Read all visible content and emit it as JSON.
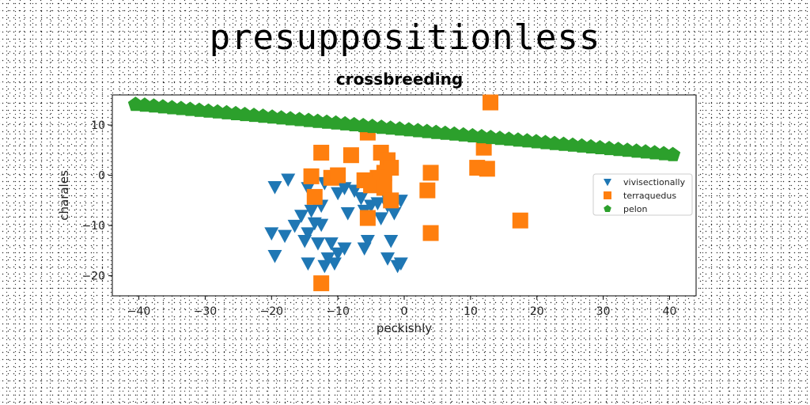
{
  "page_title": "presuppositionless",
  "chart_data": {
    "type": "scatter",
    "title": "crossbreeding",
    "xlabel": "peckishly",
    "ylabel": "charales",
    "xlim": [
      -44,
      44
    ],
    "ylim": [
      -24,
      16
    ],
    "xticks": [
      -40,
      -30,
      -20,
      -10,
      0,
      10,
      20,
      30,
      40
    ],
    "yticks": [
      10,
      0,
      -10,
      -20
    ],
    "xtick_labels": [
      "−40",
      "−30",
      "−20",
      "−10",
      "0",
      "10",
      "20",
      "30",
      "40"
    ],
    "ytick_labels": [
      "10",
      "0",
      "−10",
      "−20"
    ],
    "grid": false,
    "legend_position": "right",
    "series": [
      {
        "name": "vivisectionally",
        "color": "#1f77b4",
        "marker": "triangle-down",
        "points": [
          [
            -19.5,
            -2.3
          ],
          [
            -17.5,
            -0.8
          ],
          [
            -14.5,
            -2.5
          ],
          [
            -12,
            -1.5
          ],
          [
            -10,
            -3.5
          ],
          [
            -9,
            -2.5
          ],
          [
            -7.5,
            -3
          ],
          [
            -6.5,
            -4.5
          ],
          [
            -5,
            -6
          ],
          [
            -4,
            -5.5
          ],
          [
            -3,
            -3.5
          ],
          [
            -2.5,
            -6
          ],
          [
            -1.5,
            -7.5
          ],
          [
            -0.5,
            -5
          ],
          [
            -13.5,
            -5
          ],
          [
            -12.5,
            -6
          ],
          [
            -14,
            -7
          ],
          [
            -15.5,
            -8
          ],
          [
            -16.5,
            -10
          ],
          [
            -18,
            -12
          ],
          [
            -20,
            -11.5
          ],
          [
            -19.5,
            -16
          ],
          [
            -15,
            -13
          ],
          [
            -13.5,
            -9.5
          ],
          [
            -12.5,
            -9.8
          ],
          [
            -8.5,
            -7.5
          ],
          [
            -6,
            -7
          ],
          [
            -3.5,
            -8.5
          ],
          [
            -11.5,
            -16.5
          ],
          [
            -10,
            -15.5
          ],
          [
            -9,
            -14.5
          ],
          [
            -11,
            -13.5
          ],
          [
            -13,
            -13.5
          ],
          [
            -14.5,
            -11.5
          ],
          [
            -12,
            -18
          ],
          [
            -14.5,
            -17.5
          ],
          [
            -6,
            -14.5
          ],
          [
            -5.5,
            -13
          ],
          [
            -2.5,
            -16.5
          ],
          [
            -2,
            -13
          ],
          [
            -0.5,
            -17.5
          ],
          [
            -1,
            -18
          ],
          [
            -10.5,
            -17.5
          ]
        ]
      },
      {
        "name": "terraquedus",
        "color": "#ff7f0e",
        "marker": "square",
        "points": [
          [
            13,
            14.5
          ],
          [
            -5.5,
            8.5
          ],
          [
            12,
            5.5
          ],
          [
            -12.5,
            4.5
          ],
          [
            -8,
            4
          ],
          [
            -3.5,
            4.5
          ],
          [
            -2.5,
            3
          ],
          [
            -2,
            1.5
          ],
          [
            -3,
            0.5
          ],
          [
            -4,
            -0.5
          ],
          [
            -6,
            -1
          ],
          [
            -11,
            -0.5
          ],
          [
            -10,
            0
          ],
          [
            -14,
            -0.2
          ],
          [
            -13.5,
            -4.3
          ],
          [
            -5,
            -2
          ],
          [
            -3,
            -2.5
          ],
          [
            -2,
            -5
          ],
          [
            4,
            0.5
          ],
          [
            3.5,
            -3
          ],
          [
            11,
            1.5
          ],
          [
            12.5,
            1.3
          ],
          [
            -5.5,
            -8.5
          ],
          [
            4,
            -11.5
          ],
          [
            17.5,
            -9
          ],
          [
            -12.5,
            -21.5
          ]
        ]
      },
      {
        "name": "pelon",
        "color": "#2ca02c",
        "marker": "pentagon",
        "line": {
          "x_start": -40.5,
          "x_end": 40.5,
          "y_start": 14.1,
          "y_end": 4.1,
          "count": 60
        }
      }
    ]
  }
}
